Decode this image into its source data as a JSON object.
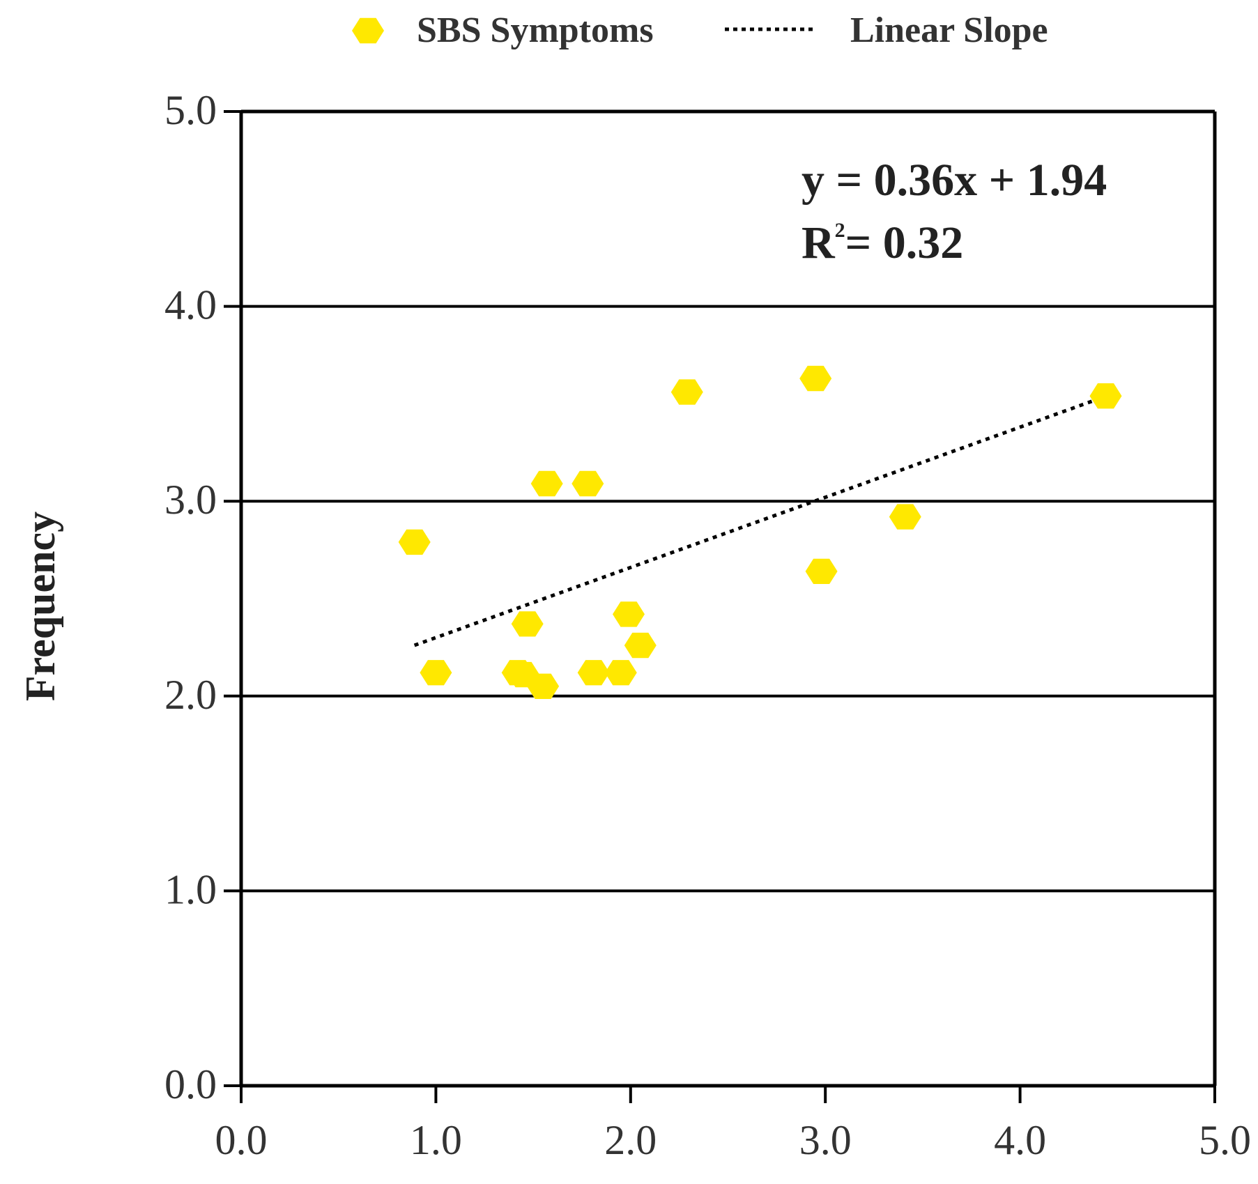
{
  "chart_data": {
    "type": "scatter",
    "title": "",
    "xlabel": "",
    "ylabel": "Frequency",
    "xlim": [
      0,
      5
    ],
    "ylim": [
      0,
      5
    ],
    "xticks": [
      "0.0",
      "1.0",
      "2.0",
      "3.0",
      "4.0",
      "5.0"
    ],
    "yticks": [
      "0.0",
      "1.0",
      "2.0",
      "3.0",
      "4.0",
      "5.0"
    ],
    "grid": "horizontal",
    "legend": {
      "placement": "top-center",
      "entries": [
        "SBS Symptoms",
        "Linear Slope"
      ]
    },
    "series": [
      {
        "name": "SBS Symptoms",
        "kind": "points",
        "color": "#FFE800",
        "points": [
          {
            "x": 0.89,
            "y": 2.79
          },
          {
            "x": 1.0,
            "y": 2.12
          },
          {
            "x": 1.42,
            "y": 2.12
          },
          {
            "x": 1.45,
            "y": 2.11
          },
          {
            "x": 1.47,
            "y": 2.37
          },
          {
            "x": 1.55,
            "y": 2.05
          },
          {
            "x": 1.57,
            "y": 3.09
          },
          {
            "x": 1.78,
            "y": 3.09
          },
          {
            "x": 1.81,
            "y": 2.12
          },
          {
            "x": 1.95,
            "y": 2.12
          },
          {
            "x": 1.99,
            "y": 2.42
          },
          {
            "x": 2.05,
            "y": 2.26
          },
          {
            "x": 2.29,
            "y": 3.56
          },
          {
            "x": 2.95,
            "y": 3.63
          },
          {
            "x": 2.98,
            "y": 2.64
          },
          {
            "x": 3.41,
            "y": 2.92
          },
          {
            "x": 4.44,
            "y": 3.54
          }
        ]
      },
      {
        "name": "Linear Slope",
        "kind": "trendline",
        "color": "#000000",
        "slope": 0.36,
        "intercept": 1.94,
        "x_range": [
          0.89,
          4.44
        ]
      }
    ],
    "annotations": {
      "equation": "y = 0.36x + 1.94",
      "r2_prefix": "R",
      "r2_sup": "2",
      "r2_rest": "= 0.32"
    }
  }
}
